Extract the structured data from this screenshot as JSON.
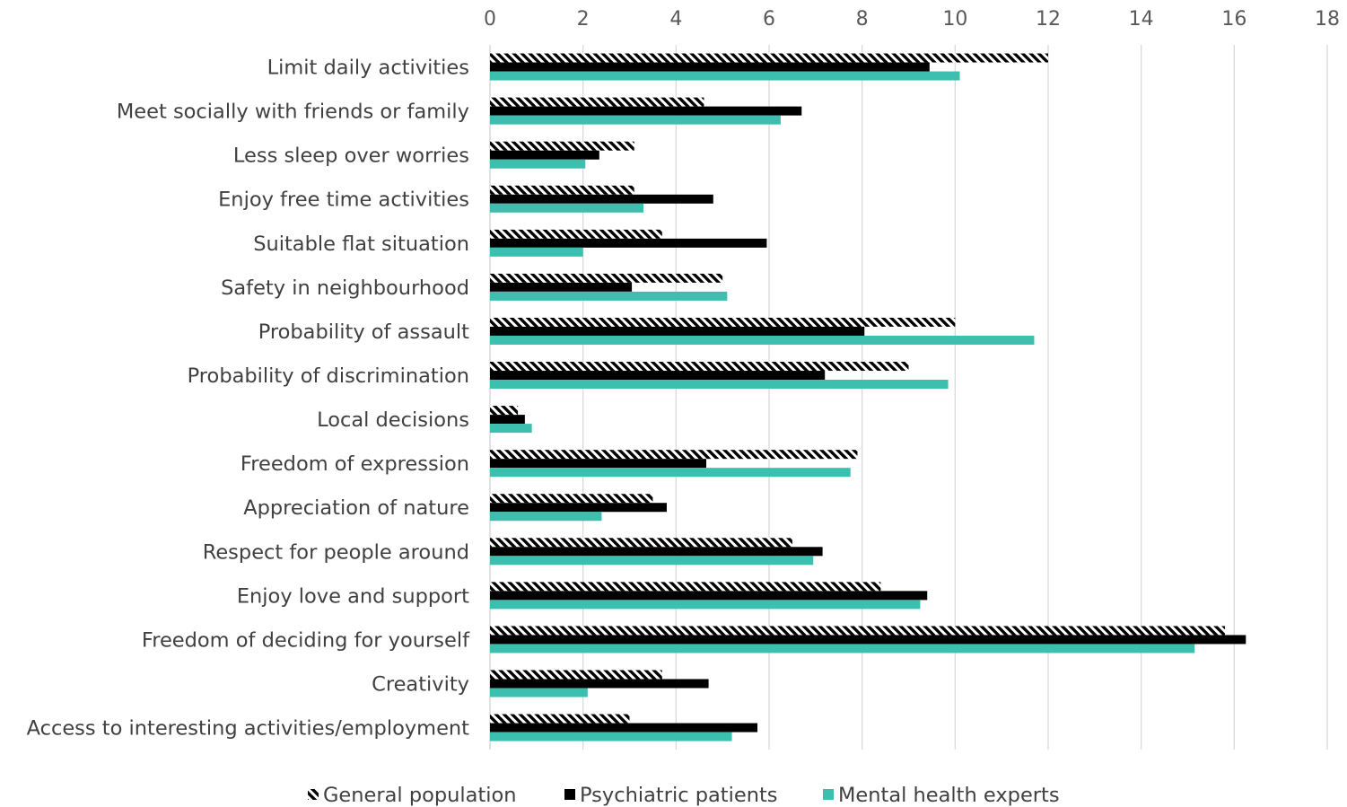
{
  "chart_data": {
    "type": "bar",
    "orientation": "horizontal",
    "title": "",
    "xlabel": "",
    "ylabel": "",
    "xlim": [
      0,
      18
    ],
    "xticks": [
      0,
      2,
      4,
      6,
      8,
      10,
      12,
      14,
      16,
      18
    ],
    "x_axis_position": "top",
    "grid": true,
    "legend_position": "bottom",
    "categories": [
      "Limit daily activities",
      "Meet socially with friends or family",
      "Less sleep over worries",
      "Enjoy free time activities",
      "Suitable flat situation",
      "Safety in neighbourhood",
      "Probability of assault",
      "Probability of discrimination",
      "Local decisions",
      "Freedom of expression",
      "Appreciation of nature",
      "Respect for people around",
      "Enjoy love and support",
      "Freedom of deciding for yourself",
      "Creativity",
      "Access to interesting activities/employment"
    ],
    "series": [
      {
        "name": "General population",
        "pattern": "diagonal-hatch",
        "color": "#000000",
        "values": [
          12.0,
          4.6,
          3.1,
          3.1,
          3.7,
          5.0,
          10.0,
          9.0,
          0.6,
          7.9,
          3.5,
          6.5,
          8.4,
          15.8,
          3.7,
          3.0
        ]
      },
      {
        "name": "Psychiatric patients",
        "pattern": "solid",
        "color": "#000000",
        "values": [
          9.45,
          6.7,
          2.35,
          4.8,
          5.95,
          3.05,
          8.05,
          7.2,
          0.75,
          4.65,
          3.8,
          7.15,
          9.4,
          16.25,
          4.7,
          5.75
        ]
      },
      {
        "name": "Mental health experts",
        "pattern": "solid",
        "color": "#3cbfae",
        "values": [
          10.1,
          6.25,
          2.05,
          3.3,
          2.0,
          5.1,
          11.7,
          9.85,
          0.9,
          7.75,
          2.4,
          6.95,
          9.25,
          15.15,
          2.1,
          5.2
        ]
      }
    ]
  }
}
